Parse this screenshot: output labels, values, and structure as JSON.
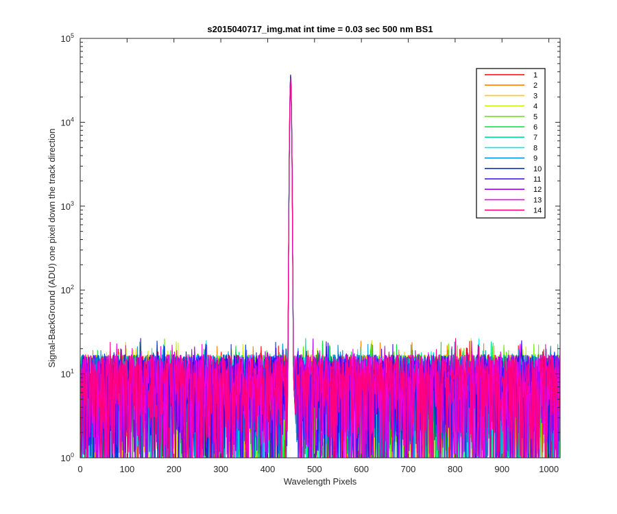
{
  "chart_data": {
    "type": "line",
    "title": "s2015040717_img.mat int time = 0.03 sec  500 nm BS1",
    "xlabel": "Wavelength Pixels",
    "ylabel": "Signal-BackGround (ADU) one pixel down the track direction",
    "xlim": [
      0,
      1024
    ],
    "ylim": [
      1,
      100000
    ],
    "yscale": "log",
    "xticks": [
      "0",
      "100",
      "200",
      "300",
      "400",
      "500",
      "600",
      "700",
      "800",
      "900",
      "1000"
    ],
    "yticks": [
      {
        "base": "10",
        "exp": "0"
      },
      {
        "base": "10",
        "exp": "1"
      },
      {
        "base": "10",
        "exp": "2"
      },
      {
        "base": "10",
        "exp": "3"
      },
      {
        "base": "10",
        "exp": "4"
      },
      {
        "base": "10",
        "exp": "5"
      }
    ],
    "grid": false,
    "legend_position": "top-right",
    "peak": {
      "x": 449,
      "y": 35000
    },
    "noise_baseline": {
      "typical_range": [
        1,
        25
      ]
    },
    "series": [
      {
        "name": "1",
        "color": "#ff0000"
      },
      {
        "name": "2",
        "color": "#ff7f00"
      },
      {
        "name": "3",
        "color": "#ffcc00"
      },
      {
        "name": "4",
        "color": "#c8f000"
      },
      {
        "name": "5",
        "color": "#60ee00"
      },
      {
        "name": "6",
        "color": "#00e040"
      },
      {
        "name": "7",
        "color": "#00e090"
      },
      {
        "name": "8",
        "color": "#00e8e8"
      },
      {
        "name": "9",
        "color": "#0090e0"
      },
      {
        "name": "10",
        "color": "#0030e0"
      },
      {
        "name": "11",
        "color": "#3c00f0"
      },
      {
        "name": "12",
        "color": "#a000f0"
      },
      {
        "name": "13",
        "color": "#f000e0"
      },
      {
        "name": "14",
        "color": "#ff0080"
      }
    ]
  }
}
